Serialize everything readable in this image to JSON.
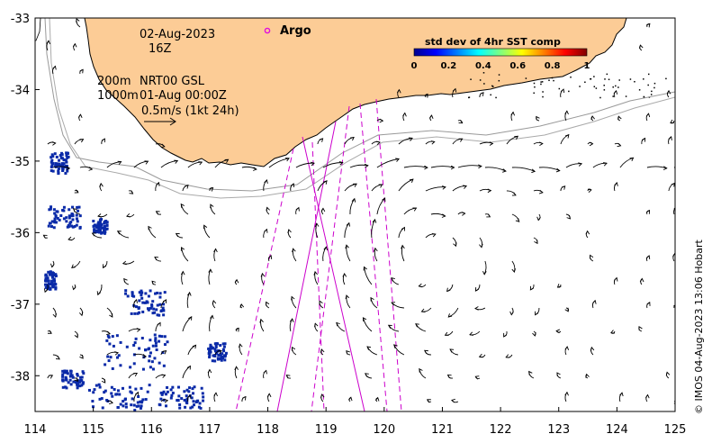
{
  "map": {
    "date_line1": "02-Aug-2023",
    "date_line2": "16Z",
    "depth_200": "200m",
    "depth_1000": "1000m",
    "product": "NRT00 GSL",
    "analysis_time": "01-Aug 00:00Z",
    "scale_label": "0.5m/s (1kt 24h)",
    "argo_label": "Argo",
    "credit": "© IMOS 04-Aug-2023 13:06 Hobart",
    "colors": {
      "land": "#fccc96",
      "argo": "#e00ce0",
      "track": "#cc00cc",
      "sst_patch": "#0a2aa8"
    }
  },
  "colorbar": {
    "title": "std dev of 4hr SST comp",
    "ticks": [
      "0",
      "0.2",
      "0.4",
      "0.6",
      "0.8",
      "1"
    ],
    "colormap": "jet"
  },
  "axes": {
    "x_ticks": [
      "114",
      "115",
      "116",
      "117",
      "118",
      "119",
      "120",
      "121",
      "122",
      "123",
      "124",
      "125"
    ],
    "y_ticks": [
      "-33",
      "-34",
      "-35",
      "-36",
      "-37",
      "-38"
    ],
    "lon_range": [
      114,
      125
    ],
    "lat_range": [
      -38.5,
      -33
    ]
  }
}
